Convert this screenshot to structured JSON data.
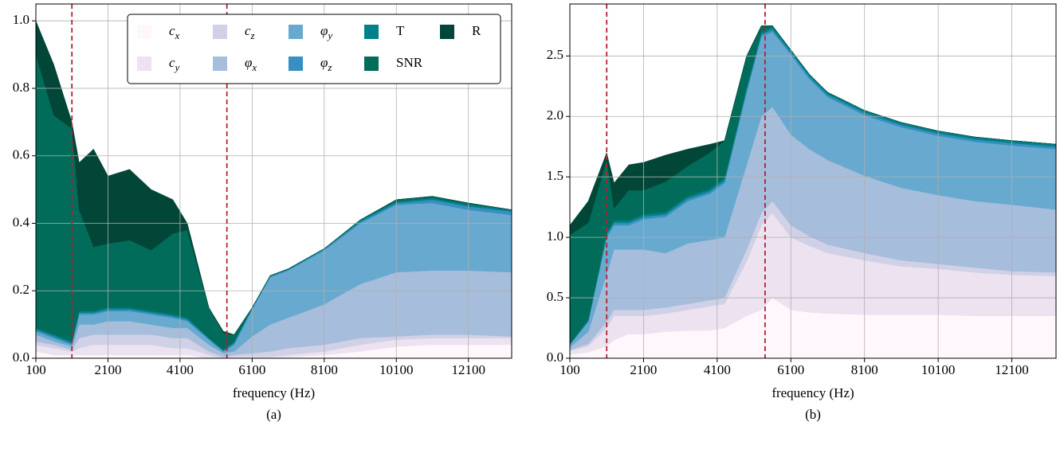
{
  "chart_data": [
    {
      "type": "stacked_area",
      "caption": "(a)",
      "xlabel": "frequency (Hz)",
      "x": [
        100,
        600,
        1100,
        1300,
        1700,
        2100,
        2700,
        3300,
        3900,
        4300,
        4900,
        5300,
        5600,
        6100,
        6600,
        7100,
        8100,
        9100,
        10100,
        11100,
        12100,
        13300
      ],
      "xlim": [
        100,
        13300
      ],
      "xticks": [
        100,
        2100,
        4100,
        6100,
        8100,
        10100,
        12100
      ],
      "ylim": [
        0,
        1.05
      ],
      "yticks": [
        {
          "value": 0,
          "label": "0.0"
        },
        0.2,
        0.4,
        0.6,
        0.8,
        {
          "value": 1,
          "label": "1.0"
        }
      ],
      "grid": true,
      "legend": "upper right",
      "vlines": [
        1100,
        5400
      ],
      "vline_color": "#b22234",
      "series": [
        {
          "name": "c_x",
          "color": "#fff7fb",
          "values": [
            0.02,
            0.01,
            0.01,
            0.01,
            0.01,
            0.01,
            0.01,
            0.01,
            0.01,
            0.01,
            0,
            0,
            0,
            0,
            0,
            0.003,
            0.01,
            0.02,
            0.035,
            0.04,
            0.04,
            0.04
          ]
        },
        {
          "name": "c_y",
          "color": "#ece2f0",
          "values": [
            0.02,
            0.02,
            0.01,
            0.02,
            0.03,
            0.03,
            0.03,
            0.03,
            0.02,
            0.02,
            0.01,
            0,
            0.005,
            0.005,
            0.005,
            0.007,
            0.01,
            0.02,
            0.02,
            0.02,
            0.02,
            0.02
          ]
        },
        {
          "name": "c_z",
          "color": "#d0d1e6",
          "values": [
            0.01,
            0.01,
            0.005,
            0.03,
            0.03,
            0.03,
            0.03,
            0.03,
            0.03,
            0.03,
            0.01,
            0.005,
            0.005,
            0.01,
            0.015,
            0.02,
            0.02,
            0.02,
            0.01,
            0.01,
            0.01,
            0.005
          ]
        },
        {
          "name": "φ_x",
          "color": "#a6bddb",
          "values": [
            0.02,
            0.01,
            0.01,
            0.04,
            0.03,
            0.04,
            0.04,
            0.03,
            0.03,
            0.03,
            0.02,
            0.01,
            0.01,
            0.05,
            0.08,
            0.09,
            0.12,
            0.16,
            0.19,
            0.19,
            0.19,
            0.19
          ]
        },
        {
          "name": "φ_y",
          "color": "#67a9cf",
          "values": [
            0.01,
            0.01,
            0.005,
            0.03,
            0.03,
            0.03,
            0.03,
            0.03,
            0.03,
            0.02,
            0.015,
            0.005,
            0.02,
            0.08,
            0.14,
            0.14,
            0.16,
            0.18,
            0.2,
            0.2,
            0.18,
            0.17
          ]
        },
        {
          "name": "φ_z",
          "color": "#3690c0",
          "values": [
            0.005,
            0.005,
            0.005,
            0.005,
            0.005,
            0.005,
            0.005,
            0.005,
            0.005,
            0.005,
            0.003,
            0.002,
            0.005,
            0.003,
            0.003,
            0.003,
            0.003,
            0.005,
            0.005,
            0.01,
            0.01,
            0.01
          ]
        },
        {
          "name": "T",
          "color": "#02818a",
          "values": [
            0.005,
            0.005,
            0.005,
            0.005,
            0.005,
            0.005,
            0.005,
            0.005,
            0.005,
            0.005,
            0.002,
            0.003,
            0.005,
            0.002,
            0.002,
            0.002,
            0.002,
            0.005,
            0.005,
            0.005,
            0.005,
            0.005
          ]
        },
        {
          "name": "SNR",
          "color": "#016c59",
          "values": [
            0.81,
            0.65,
            0.63,
            0.3,
            0.19,
            0.19,
            0.2,
            0.18,
            0.24,
            0.26,
            0.09,
            0.05,
            0.02,
            0,
            0,
            0,
            0,
            0,
            0.005,
            0.005,
            0.005,
            0
          ]
        },
        {
          "name": "R",
          "color": "#014636",
          "values": [
            0.1,
            0.15,
            0.02,
            0.14,
            0.29,
            0.2,
            0.21,
            0.18,
            0.1,
            0.02,
            0,
            0.005,
            0,
            0,
            0,
            0,
            0,
            0,
            0,
            0,
            0,
            0
          ]
        }
      ]
    },
    {
      "type": "stacked_area",
      "caption": "(b)",
      "xlabel": "frequency (Hz)",
      "x": [
        100,
        600,
        1100,
        1300,
        1700,
        2100,
        2700,
        3300,
        3900,
        4300,
        4900,
        5300,
        5600,
        6100,
        6600,
        7100,
        8100,
        9100,
        10100,
        11100,
        12100,
        13300
      ],
      "xlim": [
        100,
        13300
      ],
      "xticks": [
        100,
        2100,
        4100,
        6100,
        8100,
        10100,
        12100
      ],
      "ylim": [
        0,
        2.93
      ],
      "yticks": [
        {
          "value": 0,
          "label": "0.0"
        },
        0.5,
        {
          "value": 1,
          "label": "1.0"
        },
        1.5,
        {
          "value": 2,
          "label": "2.0"
        },
        2.5
      ],
      "grid": true,
      "vlines": [
        1100,
        5400
      ],
      "vline_color": "#b22234",
      "series": [
        {
          "color": "#fff7fb",
          "values": [
            0.03,
            0.05,
            0.1,
            0.15,
            0.2,
            0.2,
            0.22,
            0.23,
            0.23,
            0.25,
            0.35,
            0.4,
            0.5,
            0.4,
            0.38,
            0.37,
            0.36,
            0.36,
            0.36,
            0.35,
            0.35,
            0.35
          ]
        },
        {
          "color": "#ece2f0",
          "values": [
            0.03,
            0.05,
            0.15,
            0.2,
            0.15,
            0.15,
            0.15,
            0.17,
            0.2,
            0.2,
            0.45,
            0.7,
            0.7,
            0.6,
            0.55,
            0.5,
            0.45,
            0.4,
            0.38,
            0.36,
            0.34,
            0.33
          ]
        },
        {
          "color": "#d0d1e6",
          "values": [
            0.01,
            0.02,
            0.05,
            0.05,
            0.05,
            0.05,
            0.05,
            0.05,
            0.05,
            0.05,
            0.1,
            0.1,
            0.1,
            0.1,
            0.08,
            0.07,
            0.06,
            0.05,
            0.04,
            0.04,
            0.03,
            0.03
          ]
        },
        {
          "color": "#a6bddb",
          "values": [
            0.02,
            0.1,
            0.4,
            0.5,
            0.5,
            0.5,
            0.45,
            0.5,
            0.5,
            0.5,
            0.7,
            0.8,
            0.78,
            0.75,
            0.72,
            0.7,
            0.64,
            0.6,
            0.57,
            0.55,
            0.55,
            0.52
          ]
        },
        {
          "color": "#67a9cf",
          "values": [
            0.02,
            0.08,
            0.3,
            0.2,
            0.2,
            0.25,
            0.3,
            0.35,
            0.38,
            0.45,
            0.6,
            0.66,
            0.62,
            0.66,
            0.58,
            0.52,
            0.5,
            0.5,
            0.49,
            0.49,
            0.49,
            0.5
          ]
        },
        {
          "color": "#3690c0",
          "values": [
            0.005,
            0.01,
            0.02,
            0.02,
            0.02,
            0.02,
            0.02,
            0.02,
            0.02,
            0.02,
            0.02,
            0.02,
            0.02,
            0.02,
            0.02,
            0.02,
            0.02,
            0.02,
            0.02,
            0.02,
            0.02,
            0.02
          ]
        },
        {
          "color": "#02818a",
          "values": [
            0.005,
            0.01,
            0.02,
            0.02,
            0.02,
            0.02,
            0.02,
            0.02,
            0.02,
            0.02,
            0.02,
            0.02,
            0.02,
            0.02,
            0.02,
            0.02,
            0.02,
            0.02,
            0.02,
            0.02,
            0.02,
            0.02
          ]
        },
        {
          "color": "#016c59",
          "values": [
            0.9,
            0.8,
            0.6,
            0.1,
            0.25,
            0.2,
            0.25,
            0.25,
            0.3,
            0.31,
            0.26,
            0.05,
            0.01,
            0,
            0,
            0,
            0,
            0,
            0,
            0,
            0,
            0
          ]
        },
        {
          "color": "#014636",
          "values": [
            0.08,
            0.18,
            0.06,
            0.21,
            0.21,
            0.23,
            0.22,
            0.14,
            0.07,
            0,
            0,
            0,
            0,
            0,
            0,
            0,
            0,
            0,
            0,
            0,
            0,
            0
          ]
        }
      ]
    }
  ]
}
